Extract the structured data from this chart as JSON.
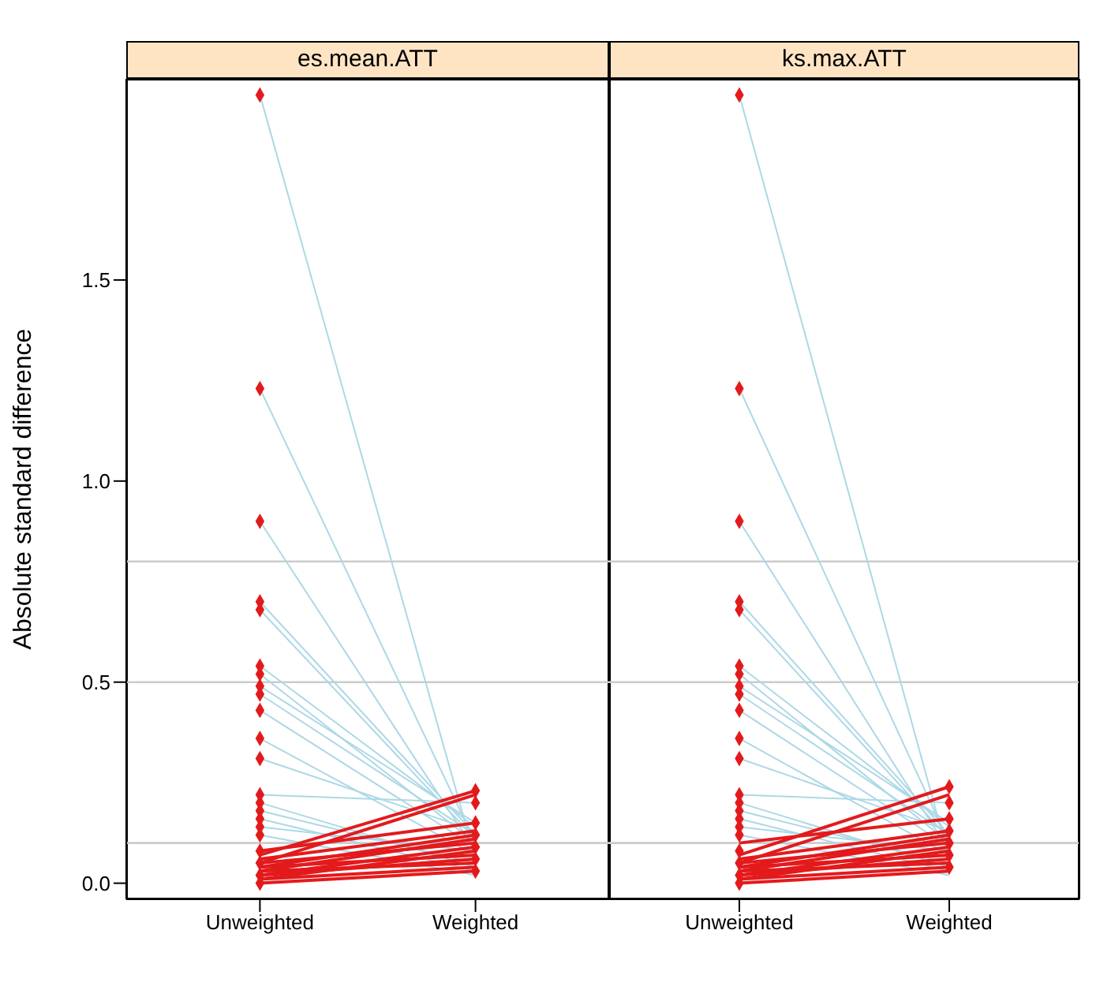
{
  "chart_data": [
    {
      "type": "line",
      "title": "es.mean.ATT",
      "ylabel": "Absolute standard difference",
      "categories": [
        "Unweighted",
        "Weighted"
      ],
      "ylim": [
        -0.04,
        2.0
      ],
      "yticks": [
        {
          "value": 0,
          "label": "0.0"
        },
        0.5,
        {
          "value": 1,
          "label": "1.0"
        },
        1.5
      ],
      "ref_lines": [
        {
          "axis": "y",
          "value": 0.1,
          "color": "#cccccc"
        },
        {
          "axis": "y",
          "value": 0.5,
          "color": "#cccccc"
        },
        {
          "axis": "y",
          "value": 0.8,
          "color": "#cccccc"
        }
      ],
      "series": [
        {
          "color": "#add8e6",
          "marker": "none",
          "values": [
            1.96,
            0.06
          ]
        },
        {
          "color": "#add8e6",
          "marker": "none",
          "values": [
            1.23,
            0.1
          ]
        },
        {
          "color": "#add8e6",
          "marker": "none",
          "values": [
            0.9,
            0.08
          ]
        },
        {
          "color": "#add8e6",
          "marker": "none",
          "values": [
            0.7,
            0.12
          ]
        },
        {
          "color": "#add8e6",
          "marker": "none",
          "values": [
            0.68,
            0.11
          ]
        },
        {
          "color": "#add8e6",
          "marker": "none",
          "values": [
            0.54,
            0.14
          ]
        },
        {
          "color": "#add8e6",
          "marker": "none",
          "values": [
            0.52,
            0.1
          ]
        },
        {
          "color": "#add8e6",
          "marker": "none",
          "values": [
            0.49,
            0.15
          ]
        },
        {
          "color": "#add8e6",
          "marker": "none",
          "values": [
            0.47,
            0.12
          ]
        },
        {
          "color": "#add8e6",
          "marker": "none",
          "values": [
            0.43,
            0.09
          ]
        },
        {
          "color": "#add8e6",
          "marker": "none",
          "values": [
            0.36,
            0.07
          ]
        },
        {
          "color": "#add8e6",
          "marker": "none",
          "values": [
            0.31,
            0.13
          ]
        },
        {
          "color": "#add8e6",
          "marker": "none",
          "values": [
            0.22,
            0.2
          ]
        },
        {
          "color": "#add8e6",
          "marker": "none",
          "values": [
            0.2,
            0.04
          ]
        },
        {
          "color": "#add8e6",
          "marker": "none",
          "values": [
            0.18,
            0.05
          ]
        },
        {
          "color": "#add8e6",
          "marker": "none",
          "values": [
            0.16,
            0.03
          ]
        },
        {
          "color": "#add8e6",
          "marker": "none",
          "values": [
            0.14,
            0.08
          ]
        },
        {
          "color": "#add8e6",
          "marker": "none",
          "values": [
            0.12,
            0.02
          ]
        },
        {
          "color": "#e31a1c",
          "marker": "none",
          "values": [
            0.07,
            0.23
          ]
        },
        {
          "color": "#e31a1c",
          "marker": "none",
          "values": [
            0.05,
            0.22
          ]
        },
        {
          "color": "#e31a1c",
          "marker": "none",
          "values": [
            0.08,
            0.15
          ]
        },
        {
          "color": "#e31a1c",
          "marker": "none",
          "values": [
            0.06,
            0.13
          ]
        },
        {
          "color": "#e31a1c",
          "marker": "none",
          "values": [
            0.04,
            0.12
          ]
        },
        {
          "color": "#e31a1c",
          "marker": "none",
          "values": [
            0.03,
            0.11
          ]
        },
        {
          "color": "#e31a1c",
          "marker": "none",
          "values": [
            0.05,
            0.1
          ]
        },
        {
          "color": "#e31a1c",
          "marker": "none",
          "values": [
            0.02,
            0.09
          ]
        },
        {
          "color": "#e31a1c",
          "marker": "none",
          "values": [
            0.01,
            0.08
          ]
        },
        {
          "color": "#e31a1c",
          "marker": "none",
          "values": [
            0.04,
            0.07
          ]
        },
        {
          "color": "#e31a1c",
          "marker": "none",
          "values": [
            0.02,
            0.06
          ]
        },
        {
          "color": "#e31a1c",
          "marker": "none",
          "values": [
            0.03,
            0.05
          ]
        },
        {
          "color": "#e31a1c",
          "marker": "none",
          "values": [
            0.01,
            0.04
          ]
        },
        {
          "color": "#e31a1c",
          "marker": "none",
          "values": [
            0.0,
            0.03
          ]
        },
        {
          "type": "scatter",
          "color": "#e31a1c",
          "marker": "diamond",
          "x": [
            "Unweighted",
            "Unweighted",
            "Unweighted",
            "Unweighted",
            "Unweighted",
            "Unweighted",
            "Unweighted",
            "Unweighted",
            "Unweighted",
            "Unweighted",
            "Unweighted",
            "Unweighted",
            "Unweighted",
            "Unweighted",
            "Unweighted",
            "Unweighted",
            "Unweighted",
            "Unweighted",
            "Unweighted",
            "Unweighted",
            "Unweighted",
            "Unweighted"
          ],
          "values": [
            1.96,
            1.23,
            0.9,
            0.7,
            0.68,
            0.54,
            0.52,
            0.49,
            0.47,
            0.43,
            0.36,
            0.31,
            0.22,
            0.2,
            0.18,
            0.16,
            0.14,
            0.12,
            0.08,
            0.05,
            0.02,
            0.0
          ]
        },
        {
          "type": "scatter",
          "color": "#e31a1c",
          "marker": "diamond",
          "x": [
            "Weighted",
            "Weighted",
            "Weighted",
            "Weighted",
            "Weighted",
            "Weighted",
            "Weighted"
          ],
          "values": [
            0.23,
            0.2,
            0.15,
            0.12,
            0.09,
            0.06,
            0.03
          ]
        }
      ]
    },
    {
      "type": "line",
      "title": "ks.max.ATT",
      "categories": [
        "Unweighted",
        "Weighted"
      ],
      "ylim": [
        -0.04,
        2.0
      ],
      "yticks": [
        {
          "value": 0,
          "label": null
        },
        {
          "value": 0.5,
          "label": null
        },
        {
          "value": 1,
          "label": null
        },
        {
          "value": 1.5,
          "label": null
        }
      ],
      "tick_labels": "x",
      "ref_lines": [
        {
          "axis": "y",
          "value": 0.1,
          "color": "#cccccc"
        },
        {
          "axis": "y",
          "value": 0.5,
          "color": "#cccccc"
        },
        {
          "axis": "y",
          "value": 0.8,
          "color": "#cccccc"
        }
      ],
      "series": [
        {
          "color": "#add8e6",
          "marker": "none",
          "values": [
            1.96,
            0.06
          ]
        },
        {
          "color": "#add8e6",
          "marker": "none",
          "values": [
            1.23,
            0.1
          ]
        },
        {
          "color": "#add8e6",
          "marker": "none",
          "values": [
            0.9,
            0.08
          ]
        },
        {
          "color": "#add8e6",
          "marker": "none",
          "values": [
            0.7,
            0.12
          ]
        },
        {
          "color": "#add8e6",
          "marker": "none",
          "values": [
            0.68,
            0.11
          ]
        },
        {
          "color": "#add8e6",
          "marker": "none",
          "values": [
            0.54,
            0.14
          ]
        },
        {
          "color": "#add8e6",
          "marker": "none",
          "values": [
            0.52,
            0.1
          ]
        },
        {
          "color": "#add8e6",
          "marker": "none",
          "values": [
            0.49,
            0.15
          ]
        },
        {
          "color": "#add8e6",
          "marker": "none",
          "values": [
            0.47,
            0.12
          ]
        },
        {
          "color": "#add8e6",
          "marker": "none",
          "values": [
            0.43,
            0.09
          ]
        },
        {
          "color": "#add8e6",
          "marker": "none",
          "values": [
            0.36,
            0.07
          ]
        },
        {
          "color": "#add8e6",
          "marker": "none",
          "values": [
            0.31,
            0.13
          ]
        },
        {
          "color": "#add8e6",
          "marker": "none",
          "values": [
            0.22,
            0.2
          ]
        },
        {
          "color": "#add8e6",
          "marker": "none",
          "values": [
            0.2,
            0.04
          ]
        },
        {
          "color": "#add8e6",
          "marker": "none",
          "values": [
            0.18,
            0.05
          ]
        },
        {
          "color": "#add8e6",
          "marker": "none",
          "values": [
            0.16,
            0.03
          ]
        },
        {
          "color": "#add8e6",
          "marker": "none",
          "values": [
            0.14,
            0.08
          ]
        },
        {
          "color": "#add8e6",
          "marker": "none",
          "values": [
            0.12,
            0.02
          ]
        },
        {
          "color": "#e31a1c",
          "marker": "none",
          "values": [
            0.07,
            0.24
          ]
        },
        {
          "color": "#e31a1c",
          "marker": "none",
          "values": [
            0.05,
            0.22
          ]
        },
        {
          "color": "#e31a1c",
          "marker": "none",
          "values": [
            0.1,
            0.16
          ]
        },
        {
          "color": "#e31a1c",
          "marker": "none",
          "values": [
            0.06,
            0.13
          ]
        },
        {
          "color": "#e31a1c",
          "marker": "none",
          "values": [
            0.04,
            0.12
          ]
        },
        {
          "color": "#e31a1c",
          "marker": "none",
          "values": [
            0.03,
            0.11
          ]
        },
        {
          "color": "#e31a1c",
          "marker": "none",
          "values": [
            0.05,
            0.1
          ]
        },
        {
          "color": "#e31a1c",
          "marker": "none",
          "values": [
            0.02,
            0.09
          ]
        },
        {
          "color": "#e31a1c",
          "marker": "none",
          "values": [
            0.01,
            0.08
          ]
        },
        {
          "color": "#e31a1c",
          "marker": "none",
          "values": [
            0.04,
            0.07
          ]
        },
        {
          "color": "#e31a1c",
          "marker": "none",
          "values": [
            0.02,
            0.06
          ]
        },
        {
          "color": "#e31a1c",
          "marker": "none",
          "values": [
            0.03,
            0.05
          ]
        },
        {
          "color": "#e31a1c",
          "marker": "none",
          "values": [
            0.01,
            0.04
          ]
        },
        {
          "color": "#e31a1c",
          "marker": "none",
          "values": [
            0.0,
            0.03
          ]
        },
        {
          "type": "scatter",
          "color": "#e31a1c",
          "marker": "diamond",
          "x": [
            "Unweighted",
            "Unweighted",
            "Unweighted",
            "Unweighted",
            "Unweighted",
            "Unweighted",
            "Unweighted",
            "Unweighted",
            "Unweighted",
            "Unweighted",
            "Unweighted",
            "Unweighted",
            "Unweighted",
            "Unweighted",
            "Unweighted",
            "Unweighted",
            "Unweighted",
            "Unweighted",
            "Unweighted",
            "Unweighted",
            "Unweighted",
            "Unweighted"
          ],
          "values": [
            1.96,
            1.23,
            0.9,
            0.7,
            0.68,
            0.54,
            0.52,
            0.49,
            0.47,
            0.43,
            0.36,
            0.31,
            0.22,
            0.2,
            0.18,
            0.16,
            0.14,
            0.12,
            0.08,
            0.05,
            0.02,
            0.0
          ]
        },
        {
          "type": "scatter",
          "color": "#e31a1c",
          "marker": "diamond",
          "x": [
            "Weighted",
            "Weighted",
            "Weighted",
            "Weighted",
            "Weighted",
            "Weighted",
            "Weighted"
          ],
          "values": [
            0.24,
            0.2,
            0.16,
            0.13,
            0.1,
            0.07,
            0.04
          ]
        }
      ]
    }
  ]
}
